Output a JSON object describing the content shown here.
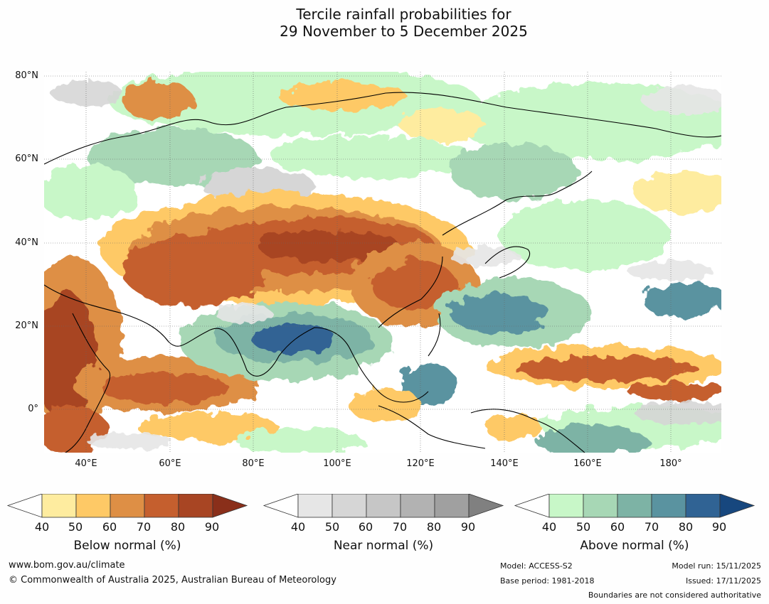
{
  "title": {
    "line1": "Tercile rainfall probabilities for",
    "line2": "29 November to 5 December 2025"
  },
  "map": {
    "lat_labels": [
      "80°N",
      "60°N",
      "40°N",
      "20°N",
      "0°"
    ],
    "lon_labels": [
      "40°E",
      "60°E",
      "80°E",
      "100°E",
      "120°E",
      "140°E",
      "160°E",
      "180°"
    ]
  },
  "colorbars": [
    {
      "caption": "Below normal (%)",
      "ticks": [
        "40",
        "50",
        "60",
        "70",
        "80",
        "90"
      ],
      "colors": [
        "#ffffff",
        "#feec9f",
        "#fec966",
        "#de8f45",
        "#c55f2e",
        "#a84523",
        "#8a2f1a"
      ]
    },
    {
      "caption": "Near normal (%)",
      "ticks": [
        "40",
        "50",
        "60",
        "70",
        "80",
        "90"
      ],
      "colors": [
        "#ffffff",
        "#e6e6e6",
        "#d6d6d6",
        "#c6c6c6",
        "#b2b2b2",
        "#a0a0a0",
        "#808080"
      ]
    },
    {
      "caption": "Above normal (%)",
      "ticks": [
        "40",
        "50",
        "60",
        "70",
        "80",
        "90"
      ],
      "colors": [
        "#ffffff",
        "#c8f7c8",
        "#a7d7b5",
        "#7db3a5",
        "#5a93a0",
        "#306394",
        "#17477e"
      ]
    }
  ],
  "footer": {
    "website": "www.bom.gov.au/climate",
    "copyright": "© Commonwealth of Australia 2025, Australian Bureau of Meteorology",
    "model": "Model: ACCESS-S2",
    "base_period": "Base period: 1981-2018",
    "model_run": "Model run: 15/11/2025",
    "issued": "Issued: 17/11/2025",
    "disclaimer": "Boundaries are not considered authoritative"
  }
}
